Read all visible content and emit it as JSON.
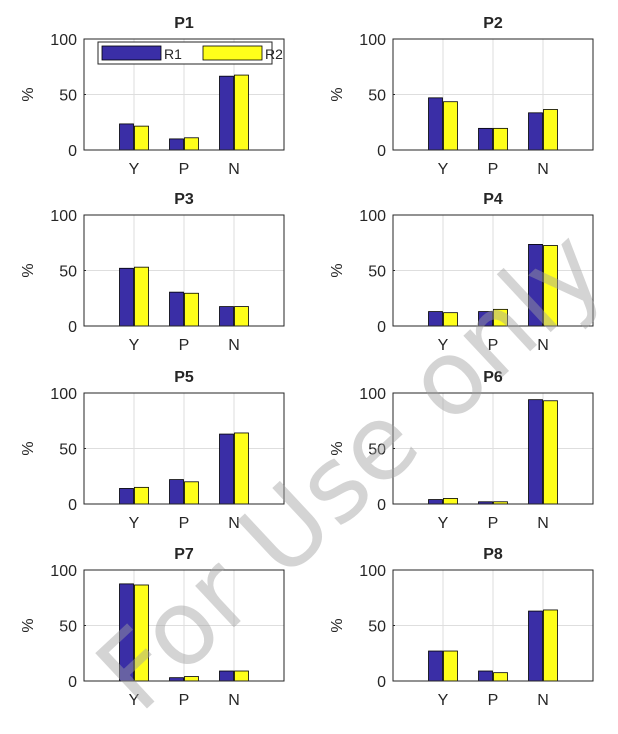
{
  "watermark": "For Use only",
  "colors": {
    "R1": "#3a2ea6",
    "R2": "#ffff1a",
    "axis": "#262626",
    "grid": "#dedede"
  },
  "chart_data": [
    {
      "type": "bar",
      "title": "P1",
      "ylabel": "%",
      "ylim": [
        0,
        100
      ],
      "yticks": [
        0,
        50,
        100
      ],
      "grid": true,
      "categories": [
        "Y",
        "P",
        "N"
      ],
      "legend": "top",
      "series": [
        {
          "name": "R1",
          "values": [
            23.5,
            10,
            66.5
          ]
        },
        {
          "name": "R2",
          "values": [
            21.5,
            11,
            67.5
          ]
        }
      ]
    },
    {
      "type": "bar",
      "title": "P2",
      "ylabel": "%",
      "ylim": [
        0,
        100
      ],
      "yticks": [
        0,
        50,
        100
      ],
      "grid": true,
      "categories": [
        "Y",
        "P",
        "N"
      ],
      "series": [
        {
          "name": "R1",
          "values": [
            47,
            19.5,
            33.5
          ]
        },
        {
          "name": "R2",
          "values": [
            43.5,
            19.5,
            36.5
          ]
        }
      ]
    },
    {
      "type": "bar",
      "title": "P3",
      "ylabel": "%",
      "ylim": [
        0,
        100
      ],
      "yticks": [
        0,
        50,
        100
      ],
      "grid": true,
      "categories": [
        "Y",
        "P",
        "N"
      ],
      "series": [
        {
          "name": "R1",
          "values": [
            52,
            30.5,
            17.5
          ]
        },
        {
          "name": "R2",
          "values": [
            53,
            29.5,
            17.5
          ]
        }
      ]
    },
    {
      "type": "bar",
      "title": "P4",
      "ylabel": "%",
      "ylim": [
        0,
        100
      ],
      "yticks": [
        0,
        50,
        100
      ],
      "grid": true,
      "categories": [
        "Y",
        "P",
        "N"
      ],
      "series": [
        {
          "name": "R1",
          "values": [
            13,
            13,
            73.5
          ]
        },
        {
          "name": "R2",
          "values": [
            12,
            15,
            72.5
          ]
        }
      ]
    },
    {
      "type": "bar",
      "title": "P5",
      "ylabel": "%",
      "ylim": [
        0,
        100
      ],
      "yticks": [
        0,
        50,
        100
      ],
      "grid": true,
      "categories": [
        "Y",
        "P",
        "N"
      ],
      "series": [
        {
          "name": "R1",
          "values": [
            14,
            22,
            63
          ]
        },
        {
          "name": "R2",
          "values": [
            15,
            20,
            64
          ]
        }
      ]
    },
    {
      "type": "bar",
      "title": "P6",
      "ylabel": "%",
      "ylim": [
        0,
        100
      ],
      "yticks": [
        0,
        50,
        100
      ],
      "grid": true,
      "categories": [
        "Y",
        "P",
        "N"
      ],
      "series": [
        {
          "name": "R1",
          "values": [
            4,
            2,
            94
          ]
        },
        {
          "name": "R2",
          "values": [
            5,
            2,
            93
          ]
        }
      ]
    },
    {
      "type": "bar",
      "title": "P7",
      "ylabel": "%",
      "ylim": [
        0,
        100
      ],
      "yticks": [
        0,
        50,
        100
      ],
      "grid": true,
      "categories": [
        "Y",
        "P",
        "N"
      ],
      "series": [
        {
          "name": "R1",
          "values": [
            87.5,
            3,
            9
          ]
        },
        {
          "name": "R2",
          "values": [
            86.5,
            4,
            9
          ]
        }
      ]
    },
    {
      "type": "bar",
      "title": "P8",
      "ylabel": "%",
      "ylim": [
        0,
        100
      ],
      "yticks": [
        0,
        50,
        100
      ],
      "grid": true,
      "categories": [
        "Y",
        "P",
        "N"
      ],
      "series": [
        {
          "name": "R1",
          "values": [
            27,
            9,
            63
          ]
        },
        {
          "name": "R2",
          "values": [
            27,
            7.5,
            64
          ]
        }
      ]
    }
  ]
}
